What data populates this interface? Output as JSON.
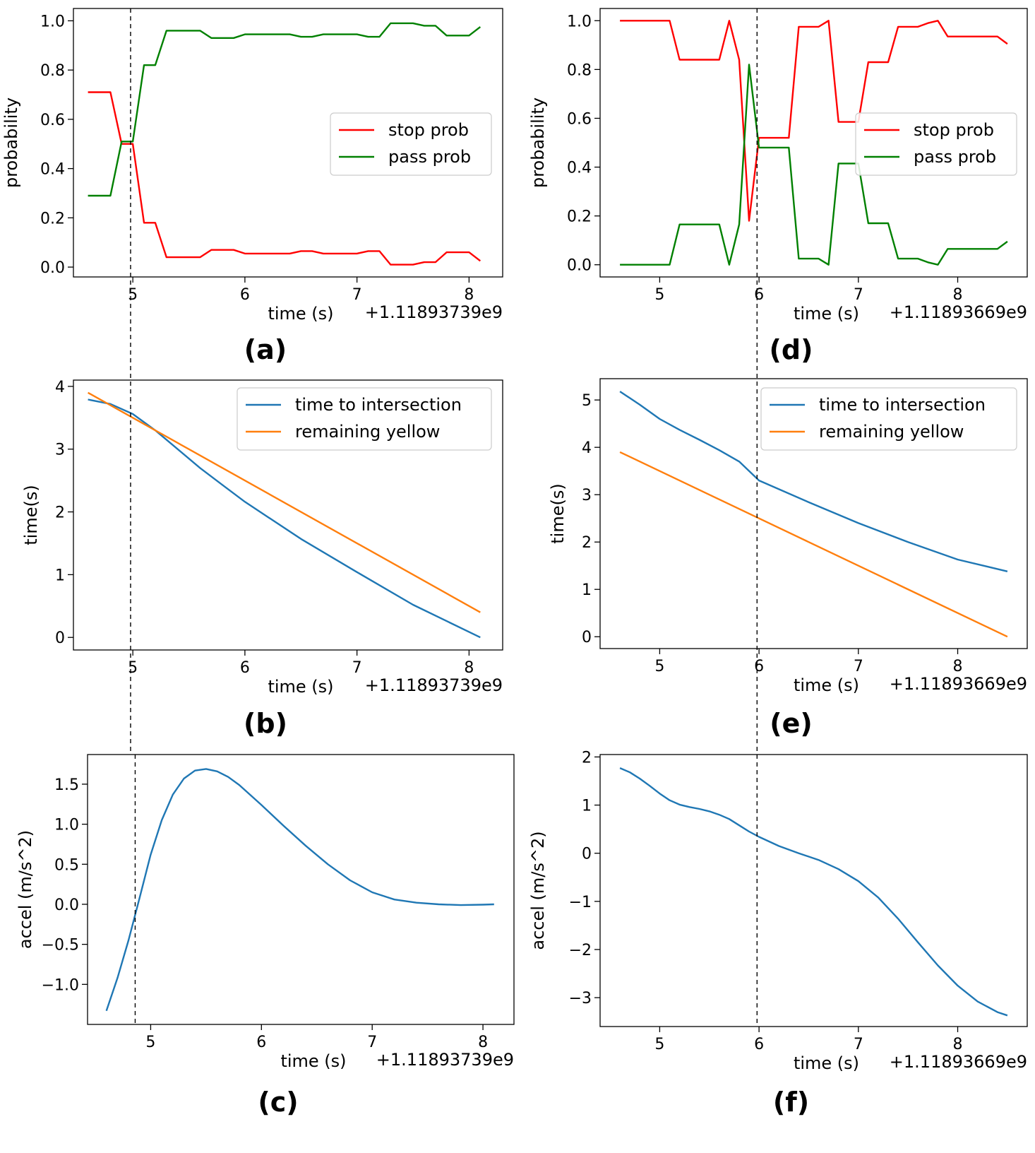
{
  "chart_data": [
    {
      "id": "a",
      "type": "line",
      "panel_label": "(a)",
      "xlabel": "time (s)",
      "x_offset_label": "+1.11893739e9",
      "ylabel": "probability",
      "xlim": [
        4.47,
        8.3
      ],
      "ylim": [
        -0.04,
        1.05
      ],
      "xticks": [
        5,
        6,
        7,
        8
      ],
      "yticks": [
        "0.0",
        "0.2",
        "0.4",
        "0.6",
        "0.8",
        "1.0"
      ],
      "legend": "center-right",
      "marker_x": 4.98,
      "series": [
        {
          "name": "stop prob",
          "color": "#ff0000",
          "x": [
            4.6,
            4.7,
            4.8,
            4.9,
            5.0,
            5.1,
            5.2,
            5.3,
            5.4,
            5.5,
            5.6,
            5.7,
            5.8,
            5.9,
            6.0,
            6.1,
            6.2,
            6.3,
            6.4,
            6.5,
            6.6,
            6.7,
            6.8,
            6.9,
            7.0,
            7.1,
            7.2,
            7.3,
            7.4,
            7.5,
            7.6,
            7.7,
            7.8,
            7.9,
            8.0,
            8.1
          ],
          "y": [
            0.71,
            0.71,
            0.71,
            0.5,
            0.5,
            0.18,
            0.18,
            0.04,
            0.04,
            0.04,
            0.04,
            0.07,
            0.07,
            0.07,
            0.055,
            0.055,
            0.055,
            0.055,
            0.055,
            0.065,
            0.065,
            0.055,
            0.055,
            0.055,
            0.055,
            0.065,
            0.065,
            0.01,
            0.01,
            0.01,
            0.02,
            0.02,
            0.06,
            0.06,
            0.06,
            0.025
          ]
        },
        {
          "name": "pass prob",
          "color": "#008000",
          "x": [
            4.6,
            4.7,
            4.8,
            4.9,
            5.0,
            5.1,
            5.2,
            5.3,
            5.4,
            5.5,
            5.6,
            5.7,
            5.8,
            5.9,
            6.0,
            6.1,
            6.2,
            6.3,
            6.4,
            6.5,
            6.6,
            6.7,
            6.8,
            6.9,
            7.0,
            7.1,
            7.2,
            7.3,
            7.4,
            7.5,
            7.6,
            7.7,
            7.8,
            7.9,
            8.0,
            8.1
          ],
          "y": [
            0.29,
            0.29,
            0.29,
            0.51,
            0.51,
            0.82,
            0.82,
            0.96,
            0.96,
            0.96,
            0.96,
            0.93,
            0.93,
            0.93,
            0.945,
            0.945,
            0.945,
            0.945,
            0.945,
            0.935,
            0.935,
            0.945,
            0.945,
            0.945,
            0.945,
            0.935,
            0.935,
            0.99,
            0.99,
            0.99,
            0.98,
            0.98,
            0.94,
            0.94,
            0.94,
            0.975
          ]
        }
      ]
    },
    {
      "id": "b",
      "type": "line",
      "panel_label": "(b)",
      "xlabel": "time (s)",
      "x_offset_label": "+1.11893739e9",
      "ylabel": "time(s)",
      "xlim": [
        4.47,
        8.3
      ],
      "ylim": [
        -0.2,
        4.1
      ],
      "xticks": [
        5,
        6,
        7,
        8
      ],
      "yticks": [
        "0",
        "1",
        "2",
        "3",
        "4"
      ],
      "legend": "upper-right",
      "marker_x": 4.98,
      "series": [
        {
          "name": "time to intersection",
          "color": "#1f77b4",
          "x": [
            4.6,
            4.8,
            5.0,
            5.2,
            5.4,
            5.6,
            5.8,
            6.0,
            6.5,
            7.0,
            7.5,
            8.1
          ],
          "y": [
            3.79,
            3.72,
            3.56,
            3.3,
            3.0,
            2.7,
            2.43,
            2.16,
            1.57,
            1.04,
            0.52,
            0.0
          ]
        },
        {
          "name": "remaining yellow",
          "color": "#ff7f0e",
          "x": [
            4.6,
            8.1
          ],
          "y": [
            3.9,
            0.4
          ]
        }
      ]
    },
    {
      "id": "c",
      "type": "line",
      "panel_label": "(c)",
      "xlabel": "time (s)",
      "x_offset_label": "+1.11893739e9",
      "ylabel": "accel (m/s^2)",
      "xlim": [
        4.43,
        8.28
      ],
      "ylim": [
        -1.5,
        1.87
      ],
      "xticks": [
        5,
        6,
        7,
        8
      ],
      "yticks": [
        "−1.0",
        "−0.5",
        "0.0",
        "0.5",
        "1.0",
        "1.5"
      ],
      "marker_x": 4.86,
      "series": [
        {
          "name": "",
          "color": "#1f77b4",
          "x": [
            4.6,
            4.7,
            4.8,
            4.9,
            5.0,
            5.1,
            5.2,
            5.3,
            5.4,
            5.5,
            5.6,
            5.7,
            5.8,
            6.0,
            6.2,
            6.4,
            6.6,
            6.8,
            7.0,
            7.2,
            7.4,
            7.6,
            7.8,
            8.0,
            8.1
          ],
          "y": [
            -1.33,
            -0.92,
            -0.45,
            0.08,
            0.62,
            1.05,
            1.37,
            1.57,
            1.67,
            1.69,
            1.66,
            1.59,
            1.49,
            1.24,
            0.98,
            0.73,
            0.5,
            0.3,
            0.15,
            0.06,
            0.02,
            0.0,
            -0.01,
            -0.005,
            0.0
          ]
        }
      ]
    },
    {
      "id": "d",
      "type": "line",
      "panel_label": "(d)",
      "xlabel": "time (s)",
      "x_offset_label": "+1.11893669e9",
      "ylabel": "probability",
      "xlim": [
        4.4,
        8.7
      ],
      "ylim": [
        -0.05,
        1.05
      ],
      "xticks": [
        5,
        6,
        7,
        8
      ],
      "yticks": [
        "0.0",
        "0.2",
        "0.4",
        "0.6",
        "0.8",
        "1.0"
      ],
      "legend": "center-right",
      "marker_x": 5.98,
      "series": [
        {
          "name": "stop prob",
          "color": "#ff0000",
          "x": [
            4.6,
            4.7,
            4.8,
            4.9,
            5.0,
            5.1,
            5.2,
            5.3,
            5.4,
            5.5,
            5.6,
            5.7,
            5.8,
            5.9,
            6.0,
            6.1,
            6.2,
            6.3,
            6.4,
            6.5,
            6.6,
            6.7,
            6.8,
            6.9,
            7.0,
            7.1,
            7.2,
            7.3,
            7.4,
            7.5,
            7.6,
            7.7,
            7.8,
            7.9,
            8.0,
            8.1,
            8.2,
            8.3,
            8.4,
            8.5
          ],
          "y": [
            1.0,
            1.0,
            1.0,
            1.0,
            1.0,
            1.0,
            0.84,
            0.84,
            0.84,
            0.84,
            0.84,
            1.0,
            0.84,
            0.18,
            0.52,
            0.52,
            0.52,
            0.52,
            0.975,
            0.975,
            0.975,
            1.0,
            0.585,
            0.585,
            0.585,
            0.83,
            0.83,
            0.83,
            0.975,
            0.975,
            0.975,
            0.99,
            1.0,
            0.935,
            0.935,
            0.935,
            0.935,
            0.935,
            0.935,
            0.905
          ]
        },
        {
          "name": "pass prob",
          "color": "#008000",
          "x": [
            4.6,
            4.7,
            4.8,
            4.9,
            5.0,
            5.1,
            5.2,
            5.3,
            5.4,
            5.5,
            5.6,
            5.7,
            5.8,
            5.9,
            6.0,
            6.1,
            6.2,
            6.3,
            6.4,
            6.5,
            6.6,
            6.7,
            6.8,
            6.9,
            7.0,
            7.1,
            7.2,
            7.3,
            7.4,
            7.5,
            7.6,
            7.7,
            7.8,
            7.9,
            8.0,
            8.1,
            8.2,
            8.3,
            8.4,
            8.5
          ],
          "y": [
            0.0,
            0.0,
            0.0,
            0.0,
            0.0,
            0.0,
            0.165,
            0.165,
            0.165,
            0.165,
            0.165,
            0.0,
            0.165,
            0.82,
            0.48,
            0.48,
            0.48,
            0.48,
            0.025,
            0.025,
            0.025,
            0.0,
            0.415,
            0.415,
            0.415,
            0.17,
            0.17,
            0.17,
            0.025,
            0.025,
            0.025,
            0.01,
            0.0,
            0.065,
            0.065,
            0.065,
            0.065,
            0.065,
            0.065,
            0.095
          ]
        }
      ]
    },
    {
      "id": "e",
      "type": "line",
      "panel_label": "(e)",
      "xlabel": "time (s)",
      "x_offset_label": "+1.11893669e9",
      "ylabel": "time(s)",
      "xlim": [
        4.4,
        8.7
      ],
      "ylim": [
        -0.25,
        5.45
      ],
      "xticks": [
        5,
        6,
        7,
        8
      ],
      "yticks": [
        "0",
        "1",
        "2",
        "3",
        "4",
        "5"
      ],
      "legend": "upper-right",
      "marker_x": 5.98,
      "series": [
        {
          "name": "time to intersection",
          "color": "#1f77b4",
          "x": [
            4.6,
            4.8,
            5.0,
            5.2,
            5.4,
            5.6,
            5.8,
            6.0,
            6.5,
            7.0,
            7.5,
            8.0,
            8.5
          ],
          "y": [
            5.18,
            4.9,
            4.6,
            4.37,
            4.16,
            3.94,
            3.7,
            3.3,
            2.84,
            2.4,
            2.0,
            1.63,
            1.38
          ]
        },
        {
          "name": "remaining yellow",
          "color": "#ff7f0e",
          "x": [
            4.6,
            8.5
          ],
          "y": [
            3.9,
            0.0
          ]
        }
      ]
    },
    {
      "id": "f",
      "type": "line",
      "panel_label": "(f)",
      "xlabel": "time (s)",
      "x_offset_label": "+1.11893669e9",
      "ylabel": "accel (m/s^2)",
      "xlim": [
        4.4,
        8.7
      ],
      "ylim": [
        -3.6,
        2.05
      ],
      "xticks": [
        5,
        6,
        7,
        8
      ],
      "yticks": [
        "−3",
        "−2",
        "−1",
        "0",
        "1",
        "2"
      ],
      "marker_x": 5.98,
      "series": [
        {
          "name": "",
          "color": "#1f77b4",
          "x": [
            4.6,
            4.7,
            4.8,
            4.9,
            5.0,
            5.1,
            5.2,
            5.3,
            5.4,
            5.5,
            5.6,
            5.7,
            5.8,
            5.9,
            6.0,
            6.2,
            6.4,
            6.6,
            6.8,
            7.0,
            7.2,
            7.4,
            7.6,
            7.8,
            8.0,
            8.2,
            8.4,
            8.5
          ],
          "y": [
            1.77,
            1.68,
            1.55,
            1.4,
            1.24,
            1.1,
            1.01,
            0.96,
            0.92,
            0.87,
            0.8,
            0.71,
            0.58,
            0.45,
            0.34,
            0.15,
            0.0,
            -0.14,
            -0.33,
            -0.58,
            -0.92,
            -1.36,
            -1.85,
            -2.33,
            -2.75,
            -3.08,
            -3.3,
            -3.37
          ]
        }
      ]
    }
  ]
}
